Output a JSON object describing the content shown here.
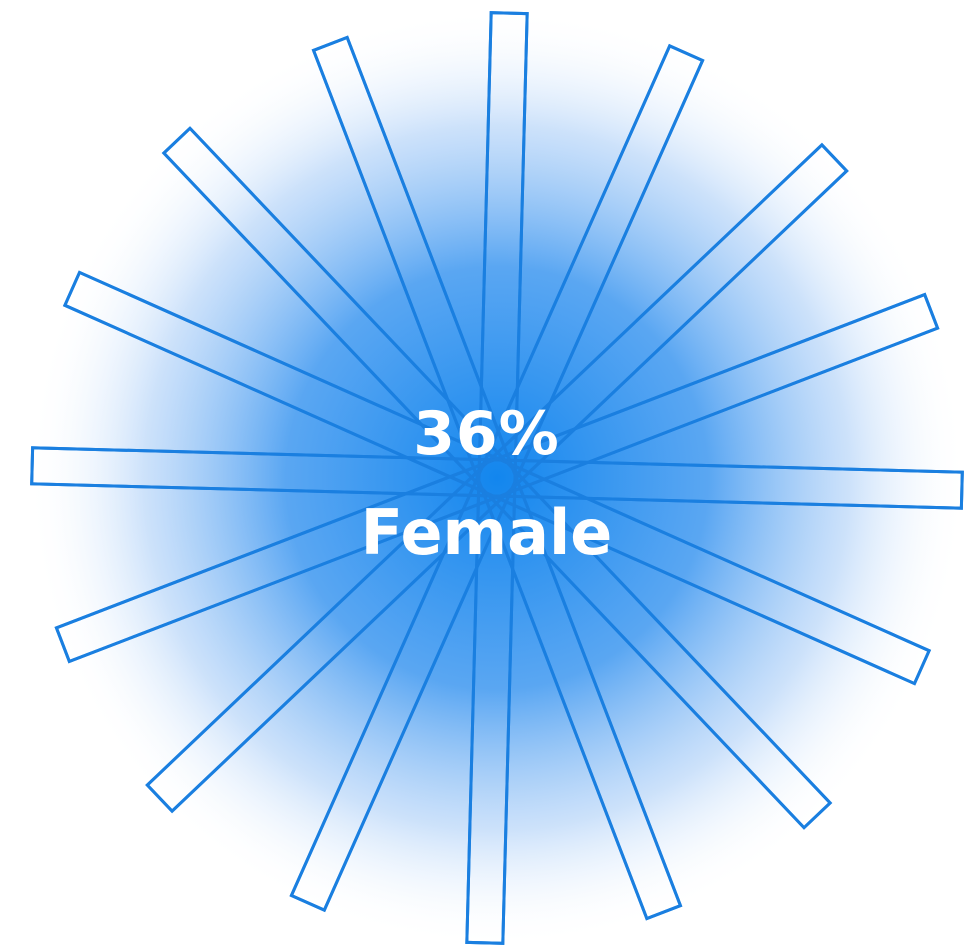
{
  "stat": {
    "value": "36%",
    "label": "Female"
  },
  "graphic": {
    "icon": "starburst-icon",
    "ray_count": 16,
    "colors": {
      "center": "#1286ee",
      "stroke": "#1a7fe0",
      "background": "#ffffff"
    }
  }
}
